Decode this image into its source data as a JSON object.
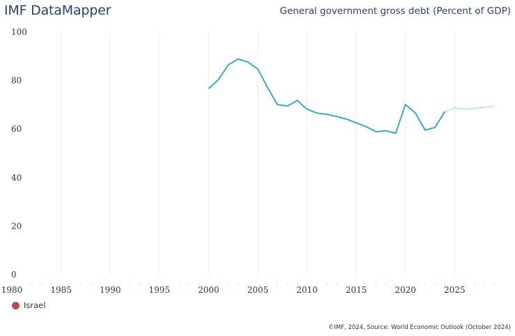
{
  "header": {
    "app_title": "IMF DataMapper",
    "chart_title": "General government gross debt (Percent of GDP)"
  },
  "footer": {
    "source": "©IMF, 2024, Source: World Economic Outlook (October 2024)"
  },
  "chart_data": {
    "type": "line",
    "title": "General government gross debt (Percent of GDP)",
    "xlabel": "",
    "ylabel": "",
    "xlim": [
      1980,
      2029
    ],
    "ylim": [
      0,
      100
    ],
    "x_ticks": [
      1980,
      1985,
      1990,
      1995,
      2000,
      2005,
      2010,
      2015,
      2020,
      2025
    ],
    "y_ticks": [
      0,
      20,
      40,
      60,
      80,
      100
    ],
    "grid": "vertical",
    "legend_position": "bottom-left",
    "series": [
      {
        "name": "Israel",
        "legend_color": "#c0474b",
        "line_color": "#3aa9c1",
        "actual": {
          "x": [
            2000,
            2001,
            2002,
            2003,
            2004,
            2005,
            2006,
            2007,
            2008,
            2009,
            2010,
            2011,
            2012,
            2013,
            2014,
            2015,
            2016,
            2017,
            2018,
            2019,
            2020,
            2021,
            2022,
            2023,
            2024
          ],
          "y": [
            76.7,
            80.4,
            86.5,
            88.9,
            87.6,
            84.7,
            77.0,
            70.1,
            69.5,
            71.8,
            68.2,
            66.6,
            66.1,
            65.2,
            64.1,
            62.6,
            61.0,
            58.9,
            59.3,
            58.3,
            70.1,
            66.7,
            59.6,
            60.7,
            67.2
          ]
        },
        "projection": {
          "x": [
            2024,
            2025,
            2026,
            2027,
            2028,
            2029
          ],
          "y": [
            67.2,
            68.7,
            68.2,
            68.5,
            69.0,
            69.4
          ]
        }
      }
    ]
  }
}
